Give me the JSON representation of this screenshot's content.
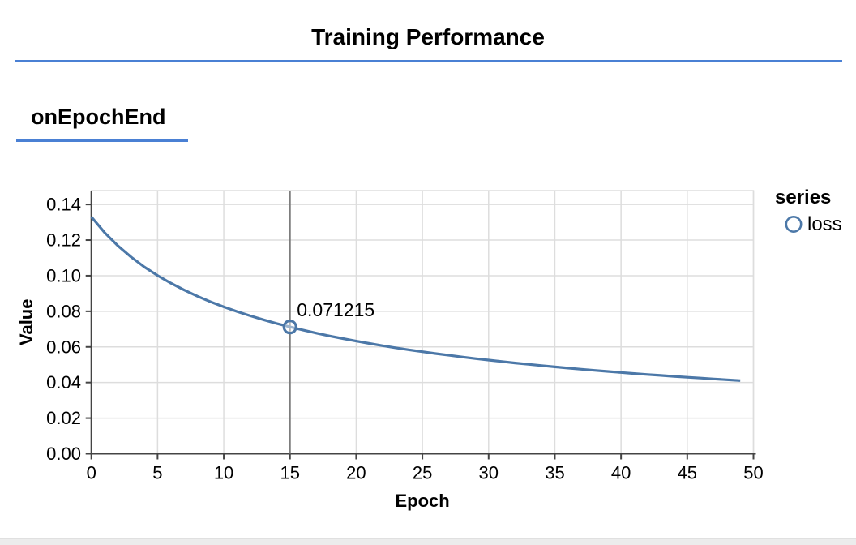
{
  "page": {
    "title": "Training Performance",
    "section_heading": "onEpochEnd"
  },
  "colors": {
    "accent_blue": "#4a80d4",
    "series_blue": "#4c78a8",
    "grid": "#dddddd",
    "domain": "#444444",
    "rule": "#7d7d7d",
    "text": "#000000",
    "bottom_strip": "#ececec"
  },
  "chart_data": {
    "type": "line",
    "title": "",
    "xlabel": "Epoch",
    "ylabel": "Value",
    "xlim": [
      0,
      50
    ],
    "ylim": [
      0,
      0.1478
    ],
    "grid": true,
    "x_tick_values": [
      0,
      5,
      10,
      15,
      20,
      25,
      30,
      35,
      40,
      45,
      50
    ],
    "x_tick_labels": [
      "0",
      "5",
      "10",
      "15",
      "20",
      "25",
      "30",
      "35",
      "40",
      "45",
      "50"
    ],
    "y_tick_values": [
      0,
      0.02,
      0.04,
      0.06,
      0.08,
      0.1,
      0.12,
      0.14
    ],
    "y_tick_labels": [
      "0.00",
      "0.02",
      "0.04",
      "0.06",
      "0.08",
      "0.10",
      "0.12",
      "0.14"
    ],
    "legend": {
      "title": "series",
      "position": "top-right",
      "entries": [
        {
          "label": "loss",
          "marker": "circle-outline",
          "color": "#4c78a8"
        }
      ]
    },
    "series": [
      {
        "name": "loss",
        "x": [
          0,
          1,
          2,
          3,
          4,
          5,
          6,
          7,
          8,
          9,
          10,
          11,
          12,
          13,
          14,
          15,
          16,
          17,
          18,
          19,
          20,
          21,
          22,
          23,
          24,
          25,
          26,
          27,
          28,
          29,
          30,
          31,
          32,
          33,
          34,
          35,
          36,
          37,
          38,
          39,
          40,
          41,
          42,
          43,
          44,
          45,
          46,
          47,
          48,
          49
        ],
        "values": [
          0.133023,
          0.124237,
          0.116828,
          0.110478,
          0.104962,
          0.100116,
          0.095816,
          0.091969,
          0.088504,
          0.085361,
          0.082496,
          0.079872,
          0.077456,
          0.075222,
          0.073151,
          0.071215,
          0.069422,
          0.067737,
          0.066155,
          0.064667,
          0.063264,
          0.061937,
          0.060682,
          0.059491,
          0.05836,
          0.057284,
          0.056258,
          0.055279,
          0.054343,
          0.053449,
          0.052591,
          0.051769,
          0.05098,
          0.050222,
          0.049493,
          0.048791,
          0.048114,
          0.047462,
          0.046832,
          0.046224,
          0.045637,
          0.045068,
          0.044518,
          0.043985,
          0.043468,
          0.042967,
          0.042481,
          0.042009,
          0.041551,
          0.041105
        ]
      }
    ],
    "highlight": {
      "x": 15,
      "y": 0.071215,
      "label": "0.071215"
    }
  }
}
